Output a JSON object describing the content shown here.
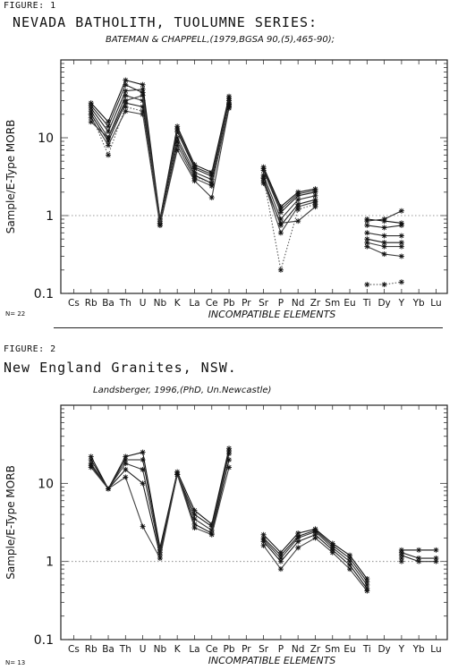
{
  "chart_data": [
    {
      "type": "line",
      "figure_label": "FIGURE: 1",
      "title": "NEVADA BATHOLITH, TUOLUMNE SERIES:",
      "reference": "BATEMAN & CHAPPELL,(1979,BGSA 90,(5),465-90);",
      "ylabel": "Sample/E-Type MORB",
      "xlabel": "INCOMPATIBLE ELEMENTS",
      "n_label": "N= 22",
      "scale": "log",
      "ylim": [
        0.1,
        100
      ],
      "y_ticks": [
        {
          "v": 10,
          "label": "10"
        },
        {
          "v": 1,
          "label": "1"
        },
        {
          "v": 0.1,
          "label": "0.1"
        }
      ],
      "reference_line": 1,
      "categories": [
        "Cs",
        "Rb",
        "Ba",
        "Th",
        "U",
        "Nb",
        "K",
        "La",
        "Ce",
        "Pb",
        "Pr",
        "Sr",
        "P",
        "Nd",
        "Zr",
        "Sm",
        "Eu",
        "Ti",
        "Dy",
        "Y",
        "Yb",
        "Lu"
      ],
      "series": [
        {
          "values": [
            null,
            28,
            16,
            55,
            48,
            0.9,
            14,
            4.5,
            3.6,
            34,
            null,
            4.2,
            1.3,
            2.0,
            2.2,
            null,
            null,
            0.9,
            0.85,
            0.8,
            null,
            null
          ]
        },
        {
          "values": [
            null,
            24,
            12,
            40,
            42,
            0.85,
            12,
            4.0,
            3.2,
            30,
            null,
            3.8,
            1.1,
            1.8,
            2.0,
            null,
            null,
            0.75,
            0.7,
            0.75,
            null,
            null
          ]
        },
        {
          "values": [
            null,
            22,
            10,
            35,
            30,
            0.8,
            10,
            3.6,
            2.9,
            28,
            null,
            3.3,
            0.9,
            1.6,
            1.8,
            null,
            null,
            0.6,
            0.55,
            0.55,
            null,
            null
          ]
        },
        {
          "values": [
            null,
            20,
            9,
            28,
            25,
            0.8,
            9,
            3.3,
            2.6,
            26,
            null,
            3.0,
            0.75,
            1.4,
            1.6,
            null,
            null,
            0.5,
            0.45,
            0.45,
            null,
            null
          ]
        },
        {
          "values": [
            null,
            18,
            8,
            22,
            20,
            0.75,
            8,
            3.0,
            2.4,
            25,
            null,
            2.8,
            0.6,
            1.3,
            1.5,
            null,
            null,
            0.45,
            0.4,
            0.4,
            null,
            null
          ]
        },
        {
          "values": [
            null,
            26,
            14,
            48,
            38,
            0.9,
            13,
            4.2,
            3.4,
            32,
            null,
            4.0,
            1.2,
            1.9,
            2.1,
            null,
            null,
            0.85,
            0.9,
            1.15,
            null,
            null
          ]
        },
        {
          "values": [
            null,
            20,
            6,
            25,
            22,
            0.8,
            9,
            3.2,
            2.6,
            27,
            null,
            3.1,
            0.2,
            1.2,
            1.4,
            null,
            null,
            0.13,
            0.13,
            0.14,
            null,
            null
          ]
        },
        {
          "values": [
            null,
            16,
            10,
            30,
            35,
            0.75,
            7,
            2.8,
            1.7,
            24,
            null,
            2.6,
            0.8,
            0.85,
            1.3,
            null,
            null,
            0.4,
            0.32,
            0.3,
            null,
            null
          ]
        }
      ]
    },
    {
      "type": "line",
      "figure_label": "FIGURE: 2",
      "title": "New England Granites, NSW.",
      "reference": "Landsberger, 1996,(PhD, Un.Newcastle)",
      "ylabel": "Sample/E-Type MORB",
      "xlabel": "INCOMPATIBLE ELEMENTS",
      "n_label": "N= 13",
      "scale": "log",
      "ylim": [
        0.1,
        100
      ],
      "y_ticks": [
        {
          "v": 10,
          "label": "10"
        },
        {
          "v": 1,
          "label": "1"
        },
        {
          "v": 0.1,
          "label": "0.1"
        }
      ],
      "reference_line": 1,
      "categories": [
        "Cs",
        "Rb",
        "Ba",
        "Th",
        "U",
        "Nb",
        "K",
        "La",
        "Ce",
        "Pb",
        "Pr",
        "Sr",
        "P",
        "Nd",
        "Zr",
        "Sm",
        "Eu",
        "Ti",
        "Dy",
        "Y",
        "Yb",
        "Lu"
      ],
      "series": [
        {
          "values": [
            null,
            22,
            8.5,
            22,
            25,
            1.5,
            14,
            4.5,
            3.0,
            28,
            null,
            2.2,
            1.3,
            2.3,
            2.6,
            1.7,
            1.2,
            0.6,
            null,
            1.4,
            1.4,
            1.4
          ]
        },
        {
          "values": [
            null,
            20,
            8.5,
            20,
            20,
            1.4,
            13,
            4.0,
            2.8,
            26,
            null,
            2.0,
            1.2,
            2.1,
            2.5,
            1.6,
            1.1,
            0.55,
            null,
            1.3,
            1.1,
            1.1
          ]
        },
        {
          "values": [
            null,
            18,
            8.5,
            18,
            15,
            1.3,
            13,
            3.5,
            2.5,
            24,
            null,
            1.9,
            1.1,
            2.0,
            2.4,
            1.5,
            1.0,
            0.5,
            null,
            1.2,
            1.0,
            1.0
          ]
        },
        {
          "values": [
            null,
            17,
            8.5,
            15,
            10,
            1.2,
            13,
            3.0,
            2.3,
            20,
            null,
            1.8,
            1.0,
            1.8,
            2.2,
            1.4,
            0.9,
            0.45,
            null,
            1.1,
            null,
            null
          ]
        },
        {
          "values": [
            null,
            16,
            8.5,
            12,
            2.8,
            1.1,
            13,
            2.7,
            2.2,
            16,
            null,
            1.6,
            0.8,
            1.5,
            2.0,
            1.3,
            0.8,
            0.42,
            null,
            1.0,
            null,
            null
          ]
        }
      ]
    }
  ]
}
